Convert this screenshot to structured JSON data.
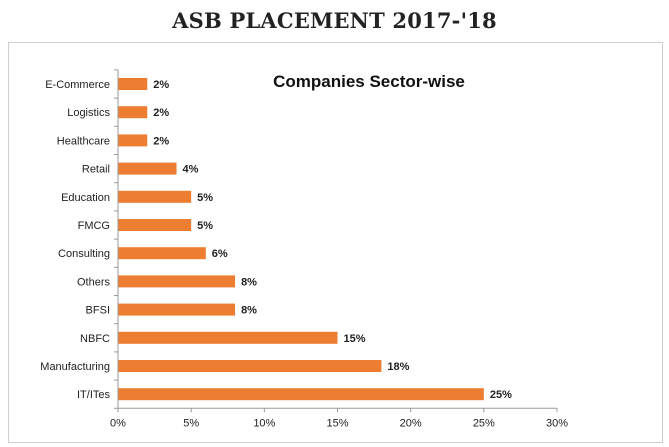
{
  "page": {
    "heading": "ASB PLACEMENT 2017-'18"
  },
  "colors": {
    "bar": "#ED7D31",
    "axis": "#9a9a9a",
    "frame": "#cfcfcf"
  },
  "chart_data": {
    "type": "bar",
    "orientation": "horizontal",
    "title": "Companies Sector-wise",
    "xlabel": "",
    "ylabel": "",
    "categories": [
      "E-Commerce",
      "Logistics",
      "Healthcare",
      "Retail",
      "Education",
      "FMCG",
      "Consulting",
      "Others",
      "BFSI",
      "NBFC",
      "Manufacturing",
      "IT/ITes"
    ],
    "values": [
      2,
      2,
      2,
      4,
      5,
      5,
      6,
      8,
      8,
      15,
      18,
      25
    ],
    "data_labels": [
      "2%",
      "2%",
      "2%",
      "4%",
      "5%",
      "5%",
      "6%",
      "8%",
      "8%",
      "15%",
      "18%",
      "25%"
    ],
    "xlim": [
      0,
      30
    ],
    "xticks": [
      0,
      5,
      10,
      15,
      20,
      25,
      30
    ],
    "xtick_labels": [
      "0%",
      "5%",
      "10%",
      "15%",
      "20%",
      "25%",
      "30%"
    ],
    "grid": false,
    "legend": "none"
  }
}
